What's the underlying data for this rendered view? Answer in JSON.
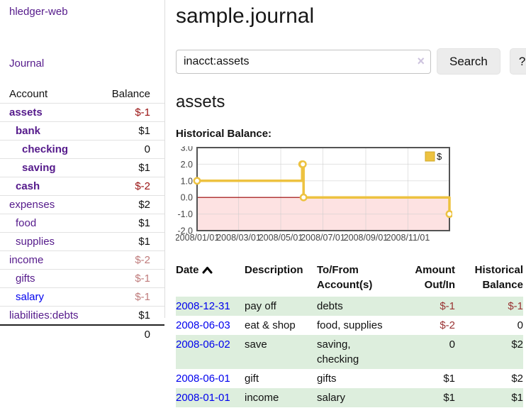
{
  "sidebar": {
    "brand": "hledger-web",
    "nav": {
      "journal_label": "Journal"
    },
    "accounts_table": {
      "headers": {
        "account": "Account",
        "balance": "Balance"
      },
      "rows": [
        {
          "name": "assets",
          "balance": "$-1"
        },
        {
          "name": "bank",
          "balance": "$1"
        },
        {
          "name": "checking",
          "balance": "0"
        },
        {
          "name": "saving",
          "balance": "$1"
        },
        {
          "name": "cash",
          "balance": "$-2"
        },
        {
          "name": "expenses",
          "balance": "$2"
        },
        {
          "name": "food",
          "balance": "$1"
        },
        {
          "name": "supplies",
          "balance": "$1"
        },
        {
          "name": "income",
          "balance": "$-2"
        },
        {
          "name": "gifts",
          "balance": "$-1"
        },
        {
          "name": "salary",
          "balance": "$-1"
        },
        {
          "name": "liabilities:debts",
          "balance": "$1"
        }
      ],
      "total": "0"
    }
  },
  "main": {
    "title": "sample.journal",
    "search": {
      "value": "inacct:assets",
      "clear_icon": "×",
      "search_label": "Search",
      "help_label": "?"
    },
    "account_heading": "assets",
    "chart_heading": "Historical Balance:"
  },
  "chart_data": {
    "type": "line",
    "title": "Historical Balance:",
    "legend": "$",
    "step": true,
    "x_min": "2008/01/01",
    "x_max": "2008/12/31",
    "ylim": [
      -2,
      3
    ],
    "y_ticks": [
      3.0,
      2.0,
      1.0,
      0.0,
      -1.0,
      -2.0
    ],
    "x_ticks": [
      "2008/01/01",
      "2008/03/01",
      "2008/05/01",
      "2008/07/01",
      "2008/09/01",
      "2008/11/01"
    ],
    "series": [
      {
        "name": "$",
        "points": [
          {
            "date": "2008-01-01",
            "value": 1
          },
          {
            "date": "2008-06-01",
            "value": 2
          },
          {
            "date": "2008-06-02",
            "value": 2
          },
          {
            "date": "2008-06-03",
            "value": 0
          },
          {
            "date": "2008-12-31",
            "value": -1
          }
        ]
      }
    ],
    "colors": {
      "line": "#edc240",
      "point_fill": "#ffffff",
      "negative_region": "#fde2e2",
      "zero_line": "#990000",
      "grid": "#cccccc",
      "border": "#545454",
      "tick_text": "#444444",
      "legend_border": "#cfa82a"
    }
  },
  "table": {
    "headers": {
      "date": "Date",
      "description": "Description",
      "tofrom": "To/From Account(s)",
      "amount": "Amount Out/In",
      "balance": "Historical Balance"
    },
    "rows": [
      {
        "date": "2008-12-31",
        "description": "pay off",
        "tofrom": "debts",
        "amount": "$-1",
        "balance": "$-1"
      },
      {
        "date": "2008-06-03",
        "description": "eat & shop",
        "tofrom": "food, supplies",
        "amount": "$-2",
        "balance": "0"
      },
      {
        "date": "2008-06-02",
        "description": "save",
        "tofrom": "saving,\nchecking",
        "amount": "0",
        "balance": "$2"
      },
      {
        "date": "2008-06-01",
        "description": "gift",
        "tofrom": "gifts",
        "amount": "$1",
        "balance": "$2"
      },
      {
        "date": "2008-01-01",
        "description": "income",
        "tofrom": "salary",
        "amount": "$1",
        "balance": "$1"
      }
    ]
  }
}
